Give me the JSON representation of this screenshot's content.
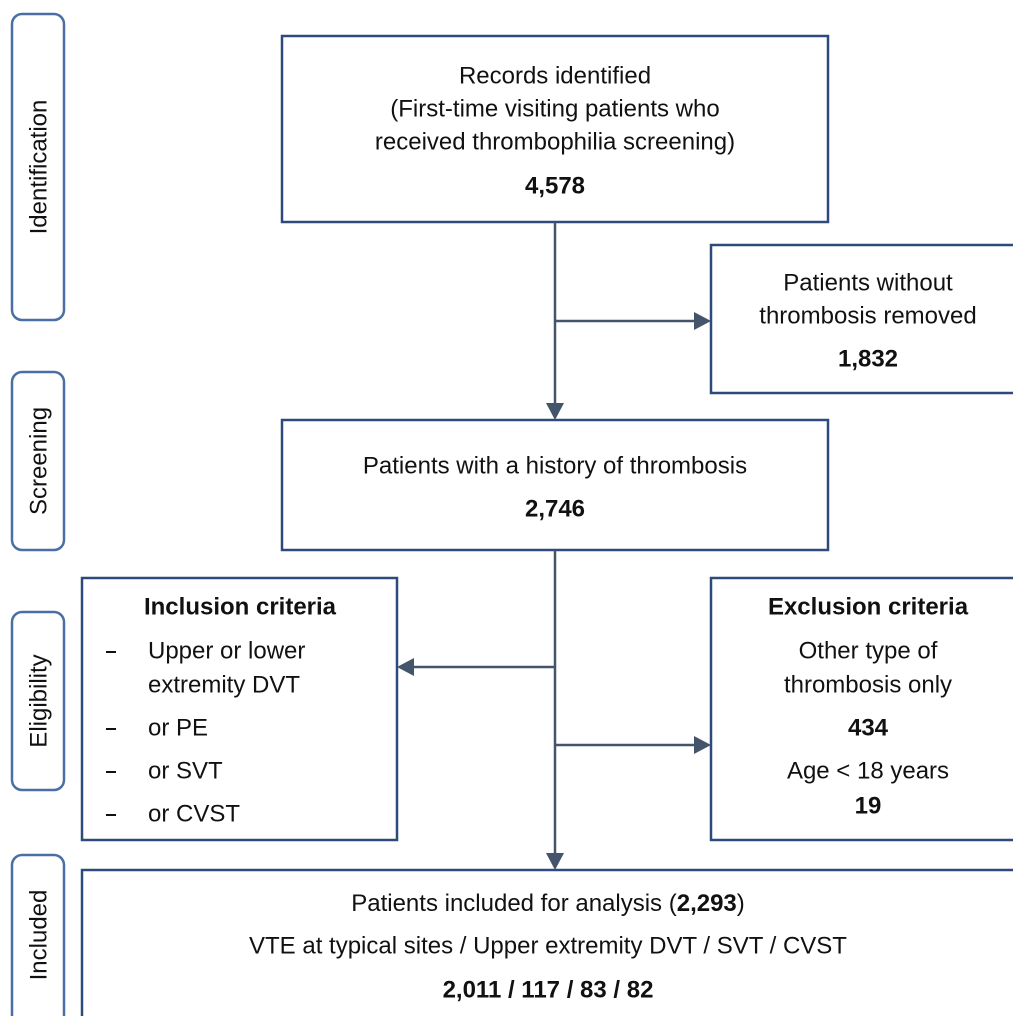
{
  "stages": [
    "Identification",
    "Screening",
    "Eligibility",
    "Included"
  ],
  "records": {
    "lines": [
      "Records identified",
      "(First-time visiting patients who",
      "received thrombophilia screening)"
    ],
    "count": "4,578"
  },
  "removed": {
    "lines": [
      "Patients without",
      "thrombosis removed"
    ],
    "count": "1,832"
  },
  "history": {
    "lines": [
      "Patients with a history of thrombosis"
    ],
    "count": "2,746"
  },
  "inclusion": {
    "title": "Inclusion criteria",
    "items": [
      [
        "Upper or lower",
        "extremity DVT"
      ],
      [
        "or PE"
      ],
      [
        "or SVT"
      ],
      [
        "or CVST"
      ]
    ]
  },
  "exclusion": {
    "title": "Exclusion criteria",
    "groups": [
      {
        "lines": [
          "Other type of",
          "thrombosis only"
        ],
        "count": "434"
      },
      {
        "lines": [
          "Age < 18 years"
        ],
        "count": "19"
      }
    ]
  },
  "included": {
    "prefix": "Patients included for analysis (",
    "count": "2,293",
    "suffix": ")",
    "groups_label": "VTE at typical sites / Upper extremity DVT / SVT / CVST",
    "group_counts": "2,011 / 117 / 83 / 82"
  }
}
